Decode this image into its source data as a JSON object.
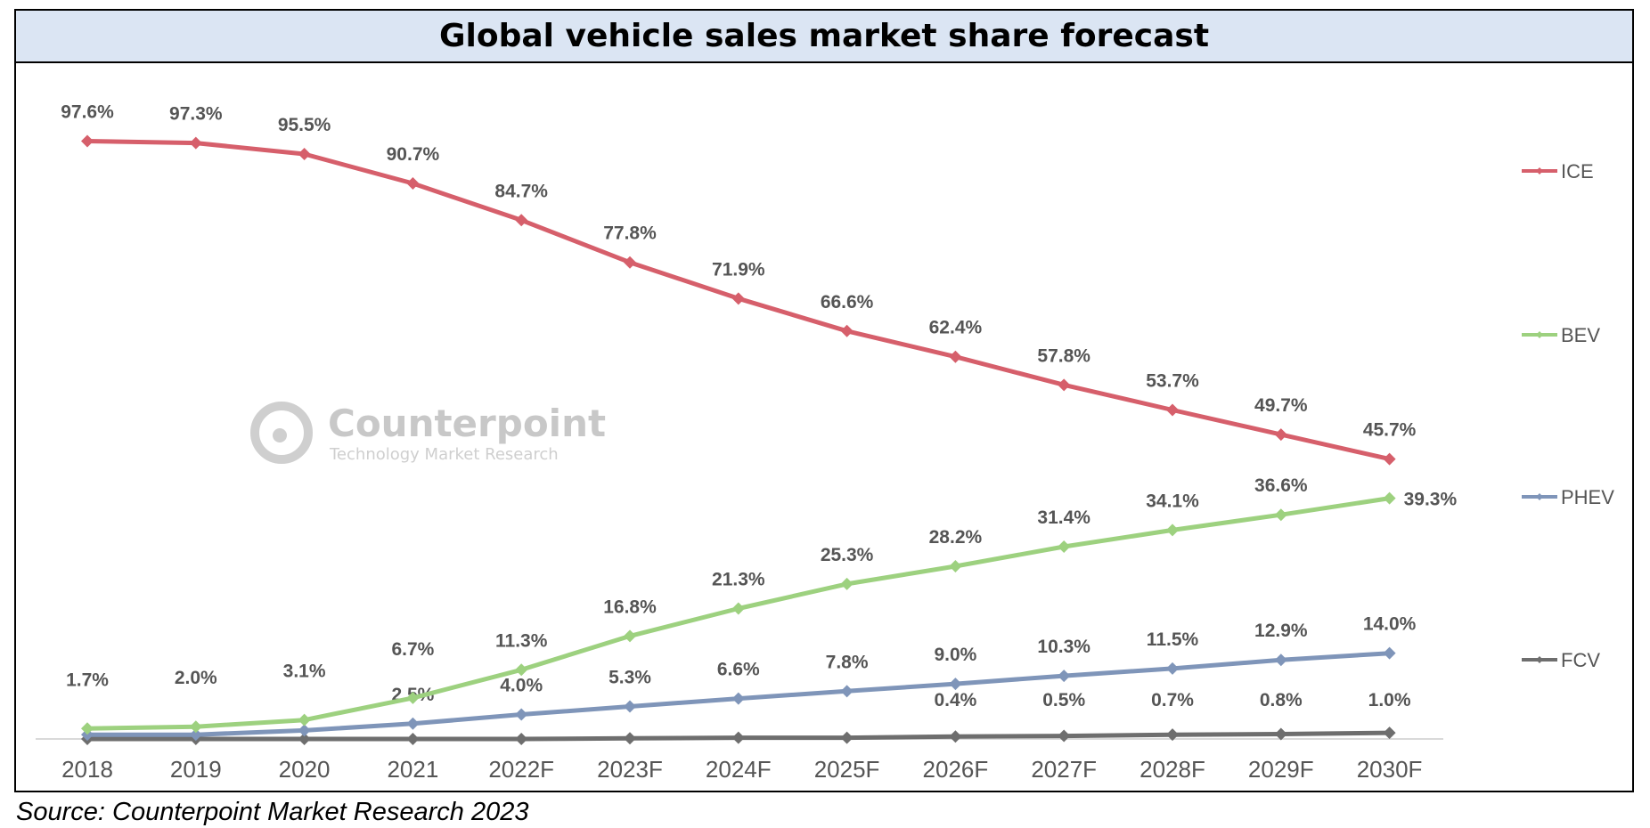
{
  "title": "Global vehicle sales market share forecast",
  "source": "Source: Counterpoint Market Research 2023",
  "watermark": {
    "name": "Counterpoint",
    "tagline": "Technology Market Research"
  },
  "chart_data": {
    "type": "line",
    "title": "Global vehicle sales market share forecast",
    "xlabel": "",
    "ylabel": "",
    "ylim": [
      0,
      100
    ],
    "grid": false,
    "legend_position": "right",
    "categories": [
      "2018",
      "2019",
      "2020",
      "2021",
      "2022F",
      "2023F",
      "2024F",
      "2025F",
      "2026F",
      "2027F",
      "2028F",
      "2029F",
      "2030F"
    ],
    "series": [
      {
        "name": "ICE",
        "color": "#d65f6b",
        "values": [
          97.6,
          97.3,
          95.5,
          90.7,
          84.7,
          77.8,
          71.9,
          66.6,
          62.4,
          57.8,
          53.7,
          49.7,
          45.7
        ],
        "labels": [
          "97.6%",
          "97.3%",
          "95.5%",
          "90.7%",
          "84.7%",
          "77.8%",
          "71.9%",
          "66.6%",
          "62.4%",
          "57.8%",
          "53.7%",
          "49.7%",
          "45.7%"
        ]
      },
      {
        "name": "BEV",
        "color": "#9dd17f",
        "values": [
          1.7,
          2.0,
          3.1,
          6.7,
          11.3,
          16.8,
          21.3,
          25.3,
          28.2,
          31.4,
          34.1,
          36.6,
          39.3
        ],
        "labels": [
          "1.7%",
          "2.0%",
          "3.1%",
          "6.7%",
          "11.3%",
          "16.8%",
          "21.3%",
          "25.3%",
          "28.2%",
          "31.4%",
          "34.1%",
          "36.6%",
          "39.3%"
        ]
      },
      {
        "name": "PHEV",
        "color": "#7f95b9",
        "values": [
          0.7,
          0.7,
          1.4,
          2.5,
          4.0,
          5.3,
          6.6,
          7.8,
          9.0,
          10.3,
          11.5,
          12.9,
          14.0
        ],
        "labels": [
          "",
          "",
          "",
          "2.5%",
          "4.0%",
          "5.3%",
          "6.6%",
          "7.8%",
          "9.0%",
          "10.3%",
          "11.5%",
          "12.9%",
          "14.0%"
        ]
      },
      {
        "name": "FCV",
        "color": "#6e6e6e",
        "values": [
          0.0,
          0.0,
          0.0,
          0.0,
          0.0,
          0.1,
          0.2,
          0.2,
          0.4,
          0.5,
          0.7,
          0.8,
          1.0
        ],
        "labels": [
          "",
          "",
          "",
          "",
          "",
          "",
          "",
          "",
          "0.4%",
          "0.5%",
          "0.7%",
          "0.8%",
          "1.0%"
        ]
      }
    ]
  }
}
